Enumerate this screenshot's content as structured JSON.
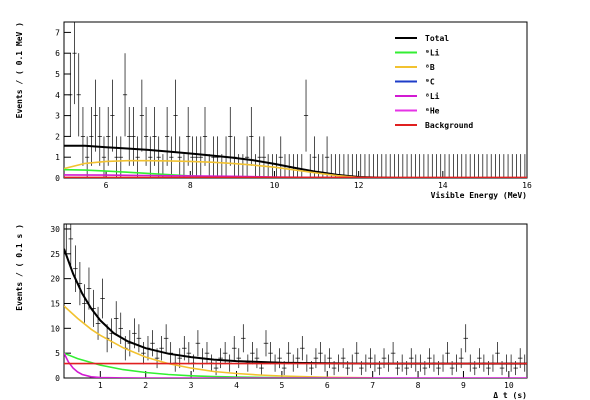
{
  "chart_data": [
    {
      "type": "line",
      "xlabel": "Visible Energy (MeV)",
      "ylabel": "Events / ( 0.1 MeV )",
      "xlim": [
        5.0,
        16.0
      ],
      "ylim": [
        0,
        7.5
      ],
      "xticks": [
        6,
        8,
        10,
        12,
        14,
        16
      ],
      "yticks": [
        0,
        1,
        2,
        3,
        4,
        5,
        6,
        7
      ],
      "legend": {
        "placement": "top-right",
        "entries": [
          {
            "label": "Total",
            "color": "#000000"
          },
          {
            "label": "⁹Li",
            "color": "#33ee33"
          },
          {
            "label": "⁸B",
            "color": "#f2c230"
          },
          {
            "label": "⁹C",
            "color": "#1e3cc8"
          },
          {
            "label": "⁸Li",
            "color": "#d21ad2"
          },
          {
            "label": "⁶He",
            "color": "#e633e6"
          },
          {
            "label": "Background",
            "color": "#e02020"
          }
        ]
      },
      "series": [
        {
          "name": "Total",
          "color": "#000000",
          "x": [
            5.0,
            5.5,
            6.0,
            6.5,
            7.0,
            7.5,
            8.0,
            8.5,
            9.0,
            9.5,
            10.0,
            10.5,
            11.0,
            11.5,
            12.0,
            12.5,
            13.0
          ],
          "y": [
            1.55,
            1.55,
            1.48,
            1.42,
            1.35,
            1.27,
            1.18,
            1.08,
            0.98,
            0.85,
            0.68,
            0.48,
            0.3,
            0.15,
            0.05,
            0.02,
            0.0
          ]
        },
        {
          "name": "⁸B",
          "color": "#f2c230",
          "x": [
            5.0,
            5.5,
            6.0,
            6.5,
            7.0,
            7.5,
            8.0,
            8.5,
            9.0,
            9.5,
            10.0,
            10.5,
            11.0,
            11.5,
            12.0,
            12.5
          ],
          "y": [
            0.45,
            0.7,
            0.8,
            0.83,
            0.83,
            0.82,
            0.8,
            0.76,
            0.7,
            0.62,
            0.52,
            0.38,
            0.24,
            0.11,
            0.03,
            0.0
          ]
        },
        {
          "name": "⁹Li",
          "color": "#33ee33",
          "x": [
            5.0,
            5.5,
            6.0,
            6.5,
            7.0,
            7.5,
            8.0,
            8.5,
            9.0,
            9.5,
            10.0
          ],
          "y": [
            0.4,
            0.38,
            0.33,
            0.28,
            0.22,
            0.16,
            0.1,
            0.06,
            0.03,
            0.01,
            0.0
          ]
        },
        {
          "name": "⁸Li",
          "color": "#d21ad2",
          "x": [
            5.0,
            6.0,
            7.0,
            8.0,
            9.0,
            10.0,
            11.0,
            12.0,
            13.0,
            14.0,
            15.0,
            16.0
          ],
          "y": [
            0.15,
            0.14,
            0.12,
            0.1,
            0.08,
            0.05,
            0.03,
            0.01,
            0.0,
            0.0,
            0.0,
            0.0
          ]
        },
        {
          "name": "Background",
          "color": "#e02020",
          "x": [
            5.0,
            7.0,
            9.0,
            11.0,
            13.0,
            16.0
          ],
          "y": [
            0.03,
            0.03,
            0.03,
            0.03,
            0.03,
            0.03
          ]
        }
      ],
      "data_points": {
        "x": [
          5.15,
          5.25,
          5.35,
          5.45,
          5.55,
          5.65,
          5.75,
          5.85,
          5.95,
          6.05,
          6.15,
          6.25,
          6.35,
          6.45,
          6.55,
          6.65,
          6.75,
          6.85,
          6.95,
          7.05,
          7.15,
          7.25,
          7.35,
          7.45,
          7.55,
          7.65,
          7.75,
          7.85,
          7.95,
          8.05,
          8.15,
          8.25,
          8.35,
          8.45,
          8.55,
          8.65,
          8.75,
          8.85,
          8.95,
          9.05,
          9.15,
          9.25,
          9.35,
          9.45,
          9.55,
          9.65,
          9.75,
          9.85,
          9.95,
          10.05,
          10.15,
          10.25,
          10.35,
          10.45,
          10.55,
          10.65,
          10.75,
          10.85,
          10.95,
          11.05,
          11.15,
          11.25,
          11.35,
          11.45,
          11.55,
          11.65,
          11.75,
          11.85,
          11.95,
          12.05,
          12.15,
          12.25,
          12.35,
          12.45,
          12.55,
          12.65,
          12.75,
          12.85,
          12.95,
          13.05,
          13.15,
          13.25,
          13.35,
          13.45,
          13.55,
          13.65,
          13.75,
          13.85,
          13.95,
          14.05,
          14.15,
          14.25,
          14.35,
          14.45,
          14.55,
          14.65,
          14.75,
          14.85,
          14.95,
          15.05,
          15.15,
          15.25,
          15.35,
          15.45,
          15.55,
          15.65,
          15.75,
          15.85,
          15.95
        ],
        "y": [
          4,
          6,
          4,
          2,
          1,
          2,
          3,
          2,
          1,
          2,
          3,
          1,
          1,
          4,
          2,
          2,
          1,
          3,
          2,
          1,
          2,
          1,
          0,
          2,
          1,
          3,
          1,
          0,
          2,
          1,
          1,
          1,
          2,
          0,
          1,
          1,
          0,
          1,
          2,
          1,
          0,
          0,
          1,
          2,
          0,
          1,
          1,
          0,
          0,
          0,
          1,
          0,
          0,
          0,
          0,
          0,
          3,
          0,
          1,
          0,
          0,
          1,
          0,
          0,
          0,
          0,
          0,
          0,
          0,
          0,
          0,
          0,
          0,
          0,
          0,
          0,
          0,
          0,
          0,
          0,
          0,
          0,
          0,
          0,
          0,
          0,
          0,
          0,
          0,
          0,
          0,
          0,
          0,
          0,
          0,
          0,
          0,
          0,
          0,
          0,
          0,
          0,
          0,
          0,
          0,
          0,
          0,
          0,
          0
        ]
      }
    },
    {
      "type": "line",
      "xlabel": "Δ t (s)",
      "ylabel": "Events / ( 0.1 s )",
      "xlim": [
        0.2,
        10.4
      ],
      "ylim": [
        0,
        31
      ],
      "xticks": [
        1,
        2,
        3,
        4,
        5,
        6,
        7,
        8,
        9,
        10
      ],
      "yticks": [
        0,
        5,
        10,
        15,
        20,
        25,
        30
      ],
      "series": [
        {
          "name": "Total",
          "color": "#000000",
          "x": [
            0.2,
            0.4,
            0.6,
            0.8,
            1.0,
            1.3,
            1.6,
            2.0,
            2.5,
            3.0,
            3.5,
            4.0,
            5.0,
            6.0,
            7.0,
            8.0,
            9.0,
            10.4
          ],
          "y": [
            26.0,
            21.0,
            17.0,
            14.0,
            11.6,
            9.0,
            7.4,
            6.0,
            4.9,
            4.2,
            3.7,
            3.4,
            3.05,
            2.95,
            2.9,
            2.9,
            2.9,
            2.9
          ]
        },
        {
          "name": "⁸B",
          "color": "#f2c230",
          "x": [
            0.2,
            0.5,
            0.8,
            1.0,
            1.5,
            2.0,
            2.5,
            3.0,
            3.5,
            4.0,
            4.5,
            5.0,
            6.0,
            7.0
          ],
          "y": [
            14.5,
            12.0,
            9.8,
            8.6,
            6.1,
            4.2,
            2.9,
            2.0,
            1.3,
            0.9,
            0.6,
            0.4,
            0.15,
            0.05
          ]
        },
        {
          "name": "⁹Li",
          "color": "#33ee33",
          "x": [
            0.2,
            0.5,
            1.0,
            1.5,
            2.0,
            2.5,
            3.0,
            3.5,
            4.0,
            5.0,
            6.0
          ],
          "y": [
            5.0,
            3.9,
            2.6,
            1.7,
            1.1,
            0.7,
            0.45,
            0.28,
            0.18,
            0.07,
            0.02
          ]
        },
        {
          "name": "⁸Li",
          "color": "#d21ad2",
          "x": [
            0.2,
            0.3,
            0.4,
            0.5,
            0.6,
            0.8,
            1.0,
            1.5,
            2.0,
            10.4
          ],
          "y": [
            5.0,
            3.2,
            2.0,
            1.2,
            0.7,
            0.25,
            0.1,
            0.02,
            0.0,
            0.0
          ]
        },
        {
          "name": "Background",
          "color": "#e02020",
          "x": [
            0.2,
            10.4
          ],
          "y": [
            2.9,
            2.9
          ]
        }
      ],
      "data_points": {
        "x": [
          0.25,
          0.35,
          0.45,
          0.55,
          0.65,
          0.75,
          0.85,
          0.95,
          1.05,
          1.15,
          1.25,
          1.35,
          1.45,
          1.55,
          1.65,
          1.75,
          1.85,
          1.95,
          2.05,
          2.15,
          2.25,
          2.35,
          2.45,
          2.55,
          2.65,
          2.75,
          2.85,
          2.95,
          3.05,
          3.15,
          3.25,
          3.35,
          3.45,
          3.55,
          3.65,
          3.75,
          3.85,
          3.95,
          4.05,
          4.15,
          4.25,
          4.35,
          4.45,
          4.55,
          4.65,
          4.75,
          4.85,
          4.95,
          5.05,
          5.15,
          5.25,
          5.35,
          5.45,
          5.55,
          5.65,
          5.75,
          5.85,
          5.95,
          6.05,
          6.15,
          6.25,
          6.35,
          6.45,
          6.55,
          6.65,
          6.75,
          6.85,
          6.95,
          7.05,
          7.15,
          7.25,
          7.35,
          7.45,
          7.55,
          7.65,
          7.75,
          7.85,
          7.95,
          8.05,
          8.15,
          8.25,
          8.35,
          8.45,
          8.55,
          8.65,
          8.75,
          8.85,
          8.95,
          9.05,
          9.15,
          9.25,
          9.35,
          9.45,
          9.55,
          9.65,
          9.75,
          9.85,
          9.95,
          10.05,
          10.15,
          10.25,
          10.35
        ],
        "y": [
          30,
          28,
          22,
          19,
          15,
          18,
          14,
          11,
          16,
          8,
          9,
          12,
          10,
          6,
          7,
          9,
          8,
          5,
          6,
          7,
          4,
          6,
          8,
          5,
          3,
          4,
          6,
          5,
          3,
          7,
          4,
          5,
          3,
          2,
          4,
          5,
          3,
          6,
          4,
          8,
          3,
          5,
          4,
          2,
          7,
          5,
          3,
          4,
          2,
          5,
          3,
          4,
          6,
          3,
          2,
          4,
          5,
          3,
          4,
          2,
          3,
          4,
          2,
          3,
          5,
          2,
          3,
          4,
          3,
          2,
          4,
          3,
          5,
          2,
          3,
          2,
          4,
          3,
          3,
          2,
          4,
          3,
          2,
          3,
          5,
          2,
          3,
          4,
          8,
          3,
          2,
          4,
          3,
          2,
          3,
          5,
          2,
          3,
          3,
          2,
          4,
          3
        ]
      }
    }
  ]
}
